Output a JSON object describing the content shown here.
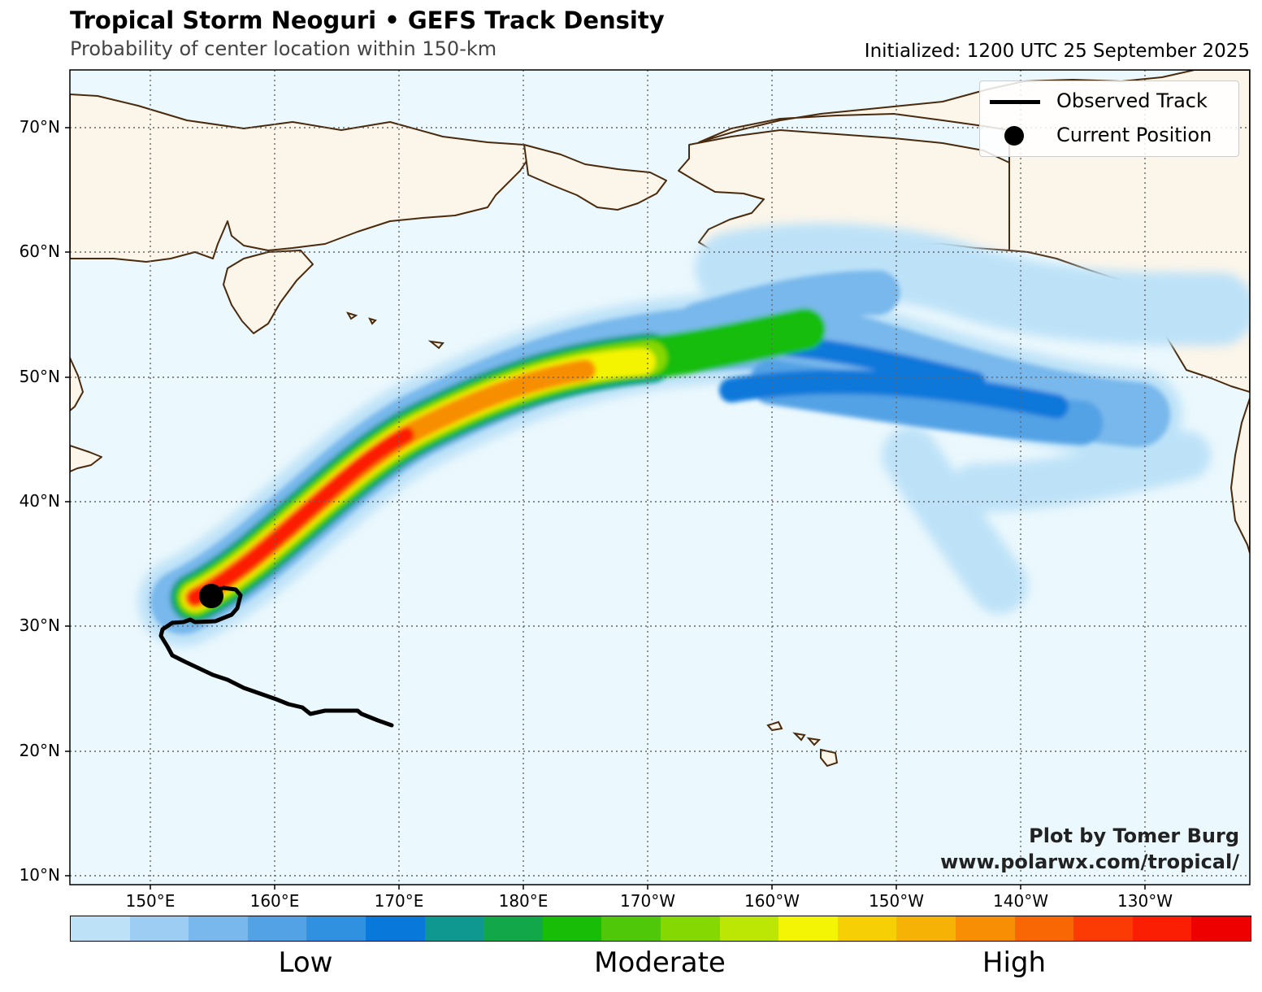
{
  "header": {
    "title": "Tropical Storm Neoguri • GEFS Track Density",
    "subtitle": "Probability of center location within 150-km",
    "initialized": "Initialized: 1200 UTC 25 September 2025"
  },
  "map": {
    "lat_labels": [
      "70°N",
      "60°N",
      "50°N",
      "40°N",
      "30°N",
      "20°N",
      "10°N"
    ],
    "lon_labels": [
      "150°E",
      "160°E",
      "170°E",
      "180°E",
      "170°W",
      "160°W",
      "150°W",
      "140°W",
      "130°W"
    ],
    "colors": {
      "ocean": "#ebf8fd",
      "land": "#fbf5ea",
      "coast": "#4a2a0c",
      "grid": "#666666",
      "track": "#000000"
    }
  },
  "legend": {
    "observed_track": "Observed Track",
    "current_position": "Current Position"
  },
  "credit": {
    "author": "Plot by Tomer Burg",
    "url": "www.polarwx.com/tropical/"
  },
  "colorbar": {
    "labels": [
      "Low",
      "Moderate",
      "High"
    ],
    "colors": [
      "#bde2f8",
      "#9dcdf2",
      "#78b8ec",
      "#53a2e5",
      "#2f91e0",
      "#0878da",
      "#0e9890",
      "#12a84a",
      "#17bd07",
      "#4ec808",
      "#86d802",
      "#bce603",
      "#f4f405",
      "#f6d004",
      "#f6b205",
      "#f78e04",
      "#f96604",
      "#fc3a04",
      "#fc1e02",
      "#ee0000"
    ]
  }
}
